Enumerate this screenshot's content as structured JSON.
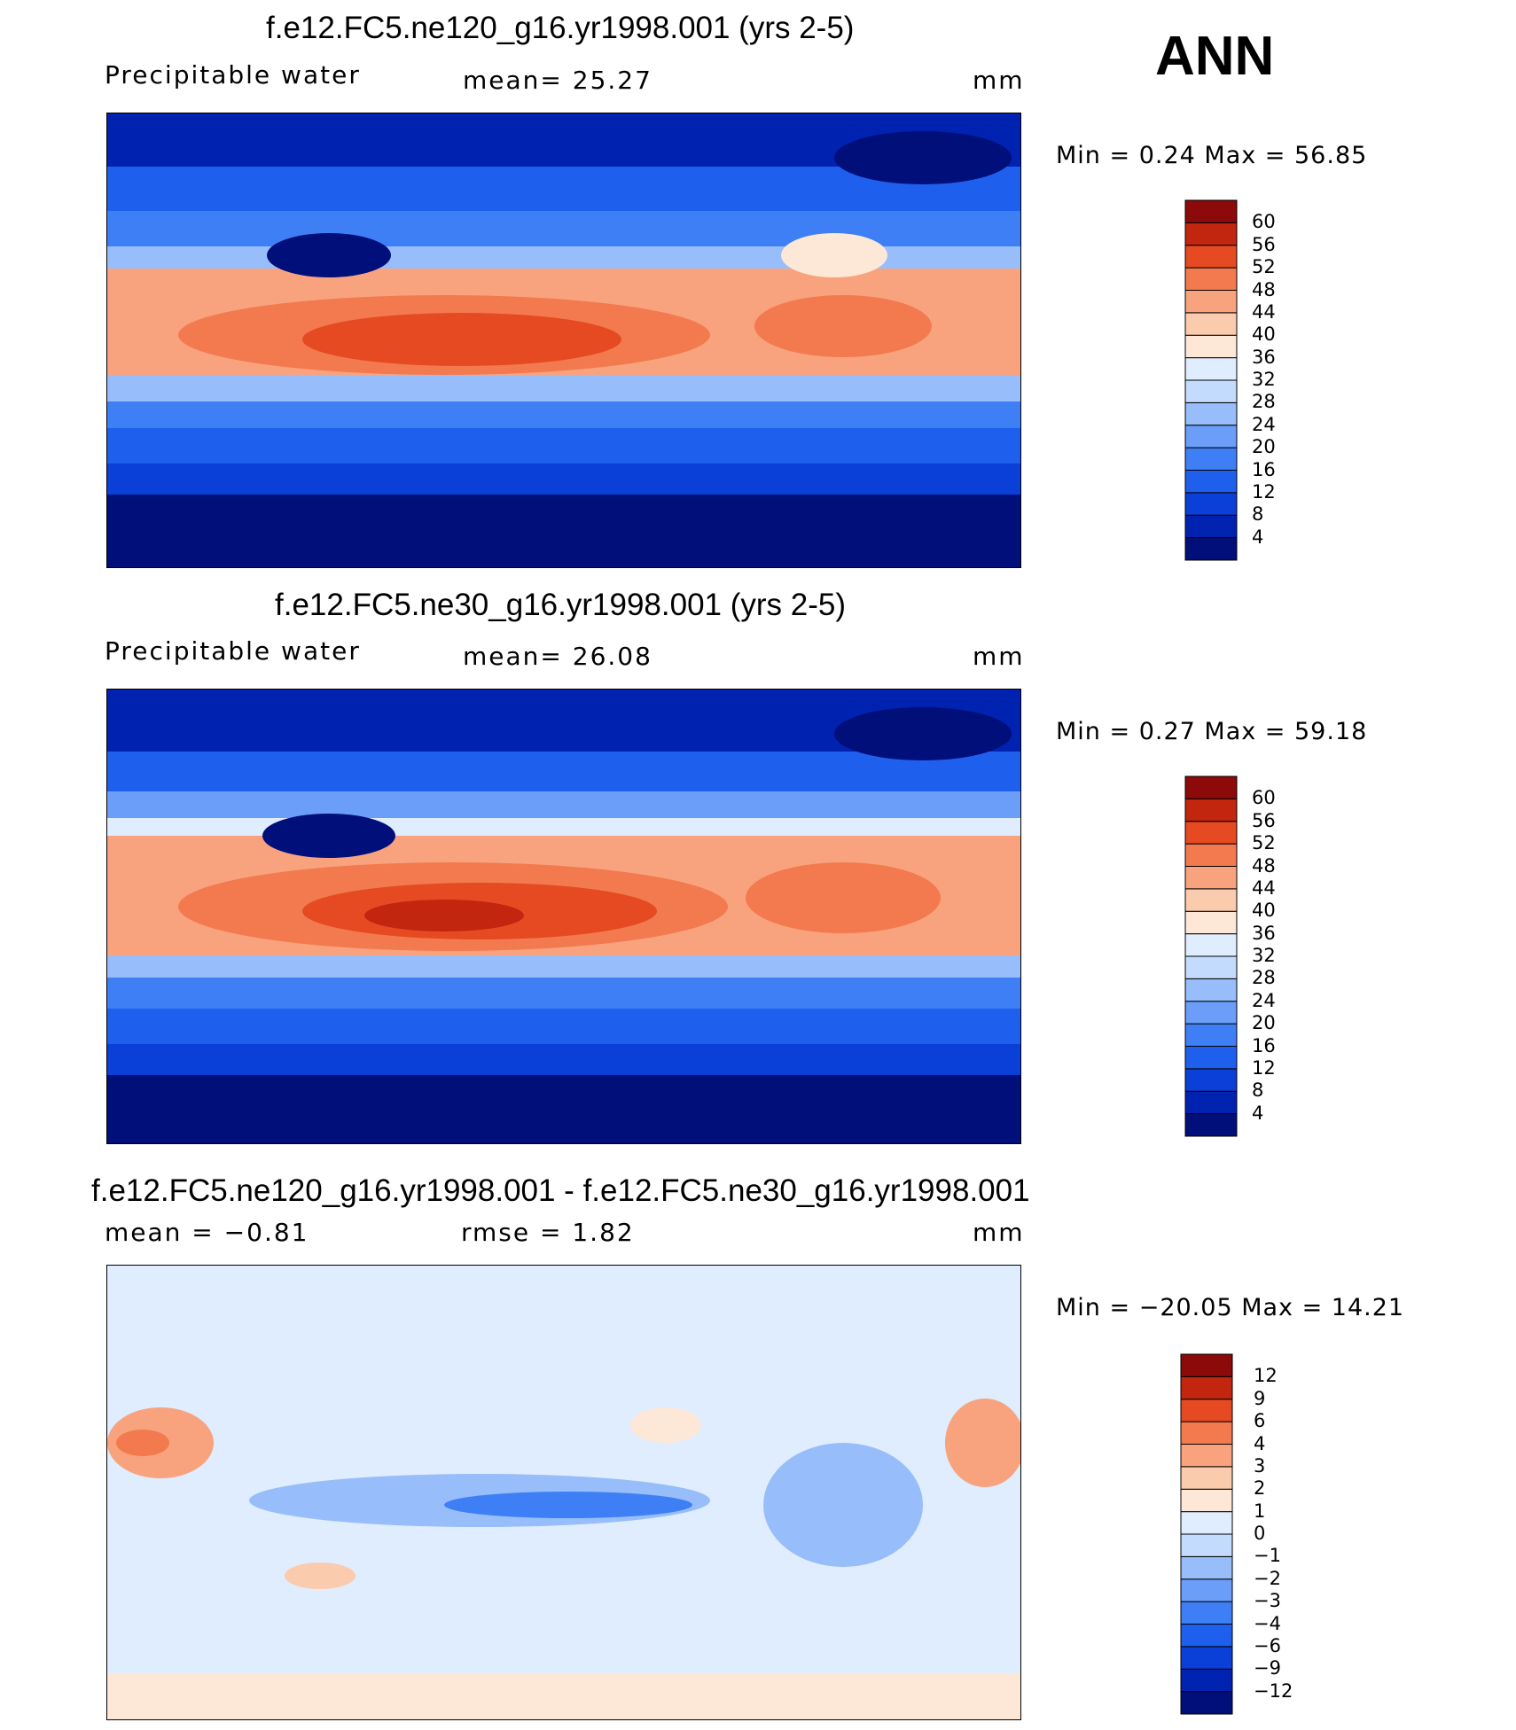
{
  "season": "ANN",
  "panels": [
    {
      "title": "f.e12.FC5.ne120_g16.yr1998.001 (yrs 2-5)",
      "left_label": "Precipitable water",
      "center_label": "mean=   25.27",
      "units": "mm",
      "min_max": "Min =    0.24  Max =   56.85",
      "colorbar_labels": [
        "60",
        "56",
        "52",
        "48",
        "44",
        "40",
        "36",
        "32",
        "28",
        "24",
        "20",
        "16",
        "12",
        "8",
        "4"
      ]
    },
    {
      "title": "f.e12.FC5.ne30_g16.yr1998.001 (yrs 2-5)",
      "left_label": "Precipitable water",
      "center_label": "mean=   26.08",
      "units": "mm",
      "min_max": "Min =    0.27  Max =   59.18",
      "colorbar_labels": [
        "60",
        "56",
        "52",
        "48",
        "44",
        "40",
        "36",
        "32",
        "28",
        "24",
        "20",
        "16",
        "12",
        "8",
        "4"
      ]
    },
    {
      "title": "f.e12.FC5.ne120_g16.yr1998.001 - f.e12.FC5.ne30_g16.yr1998.001",
      "left_label": "mean =   −0.81",
      "center_label": "rmse =     1.82",
      "units": "mm",
      "min_max": "Min = −20.05  Max =   14.21",
      "colorbar_labels": [
        "12",
        "9",
        "6",
        "4",
        "3",
        "2",
        "1",
        "0",
        "−1",
        "−2",
        "−3",
        "−4",
        "−6",
        "−9",
        "−12"
      ]
    }
  ],
  "colors": {
    "abs_scale": [
      "#000f7a",
      "#0022b0",
      "#0a3fd8",
      "#1f5fee",
      "#3f7ff5",
      "#6a9ef8",
      "#98bdfb",
      "#c3dbfd",
      "#e0edfe",
      "#fde8d8",
      "#fbcbae",
      "#f8a37e",
      "#f37a4f",
      "#e64a22",
      "#c2260f",
      "#8c0a0a"
    ],
    "diff_scale": [
      "#000f7a",
      "#0022b0",
      "#0a3fd8",
      "#1f5fee",
      "#3f7ff5",
      "#6a9ef8",
      "#98bdfb",
      "#c3dbfd",
      "#e0edfe",
      "#fde8d8",
      "#fbcbae",
      "#f8a37e",
      "#f37a4f",
      "#e64a22",
      "#c2260f",
      "#8c0a0a"
    ]
  },
  "chart_data": [
    {
      "type": "heatmap",
      "title": "f.e12.FC5.ne120_g16.yr1998.001 (yrs 2-5)",
      "variable": "Precipitable water",
      "units": "mm",
      "mean": 25.27,
      "min": 0.24,
      "max": 56.85,
      "contour_levels": [
        4,
        8,
        12,
        16,
        20,
        24,
        28,
        32,
        36,
        40,
        44,
        48,
        52,
        56,
        60
      ],
      "projection": "cylindrical equidistant, Pacific-centered"
    },
    {
      "type": "heatmap",
      "title": "f.e12.FC5.ne30_g16.yr1998.001 (yrs 2-5)",
      "variable": "Precipitable water",
      "units": "mm",
      "mean": 26.08,
      "min": 0.27,
      "max": 59.18,
      "contour_levels": [
        4,
        8,
        12,
        16,
        20,
        24,
        28,
        32,
        36,
        40,
        44,
        48,
        52,
        56,
        60
      ],
      "projection": "cylindrical equidistant, Pacific-centered"
    },
    {
      "type": "heatmap",
      "title": "f.e12.FC5.ne120_g16.yr1998.001 - f.e12.FC5.ne30_g16.yr1998.001",
      "units": "mm",
      "mean": -0.81,
      "rmse": 1.82,
      "min": -20.05,
      "max": 14.21,
      "contour_levels": [
        -12,
        -9,
        -6,
        -4,
        -3,
        -2,
        -1,
        0,
        1,
        2,
        3,
        4,
        6,
        9,
        12
      ]
    }
  ]
}
